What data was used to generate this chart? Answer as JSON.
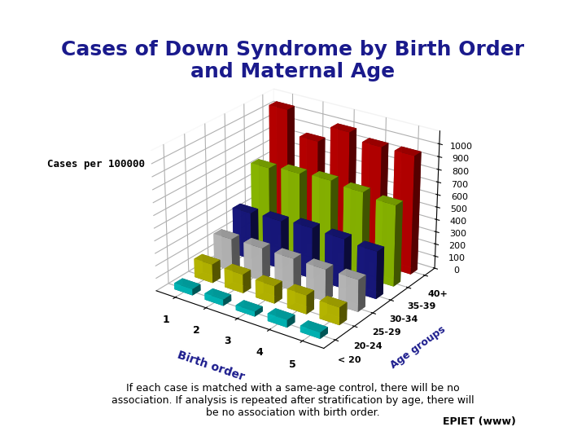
{
  "title": "Cases of Down Syndrome by Birth Order\nand Maternal Age",
  "subtitle_text": "If each case is matched with a same-age control, there will be no\nassociation. If analysis is repeated after stratification by age, there will\nbe no association with birth order.",
  "ylabel": "Cases per 100000",
  "xlabel": "Birth order",
  "xlabel2": "Age groups",
  "birth_orders": [
    1,
    2,
    3,
    4,
    5
  ],
  "age_groups": [
    "< 20",
    "20-24",
    "25-29",
    "30-34",
    "35-39",
    "40+"
  ],
  "data": {
    "< 20": [
      50,
      50,
      40,
      60,
      50
    ],
    "20-24": [
      150,
      150,
      140,
      150,
      140
    ],
    "25-29": [
      260,
      265,
      260,
      255,
      255
    ],
    "30-34": [
      380,
      390,
      410,
      400,
      380
    ],
    "35-39": [
      660,
      685,
      700,
      680,
      650
    ],
    "40+": [
      1050,
      860,
      1000,
      950,
      950
    ]
  },
  "colors": {
    "< 20": "#00CCCC",
    "20-24": "#CCCC00",
    "25-29": "#CCCCCC",
    "30-34": "#1A1A8C",
    "35-39": "#99CC00",
    "40+": "#CC0000"
  },
  "background_color": "#FFFFFF",
  "yticks": [
    0,
    100,
    200,
    300,
    400,
    500,
    600,
    700,
    800,
    900,
    1000
  ],
  "epiet_text": "EPIET (www)",
  "title_color": "#1A1A8C",
  "title_fontsize": 18,
  "text_color": "#1A1A8C"
}
